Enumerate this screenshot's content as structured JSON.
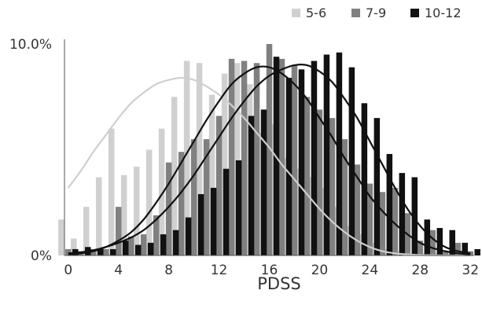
{
  "chart_data": {
    "type": "bar",
    "xlabel": "PDSS",
    "ylabel": "",
    "xlim": [
      -0.3,
      32.3
    ],
    "ylim": [
      0,
      10
    ],
    "xticks": [
      0,
      4,
      8,
      12,
      16,
      20,
      24,
      28,
      32
    ],
    "xtick_labels": [
      "0",
      "4",
      "8",
      "12",
      "16",
      "20",
      "24",
      "28",
      "32"
    ],
    "yticks": [
      0,
      10
    ],
    "ytick_labels": [
      "0%",
      "10.0%"
    ],
    "grid": false,
    "legend_position": "top-right",
    "x": [
      0,
      1,
      2,
      3,
      4,
      5,
      6,
      7,
      8,
      9,
      10,
      11,
      12,
      13,
      14,
      15,
      16,
      17,
      18,
      19,
      20,
      21,
      22,
      23,
      24,
      25,
      26,
      27,
      28,
      29,
      30,
      31,
      32
    ],
    "series": [
      {
        "name": "5-6",
        "color": "#d0d0d0",
        "values": [
          1.7,
          0.8,
          2.3,
          3.7,
          6.0,
          3.8,
          4.2,
          5.0,
          6.0,
          7.5,
          9.2,
          9.1,
          7.6,
          8.6,
          9.1,
          8.1,
          5.8,
          6.2,
          4.6,
          4.1,
          3.7,
          3.2,
          2.3,
          1.4,
          1.0,
          0.6,
          0.3,
          0.2,
          0.1,
          0.1,
          0.1,
          0.1,
          0.1
        ],
        "fit": [
          3.2,
          4.0,
          4.9,
          5.7,
          6.5,
          7.2,
          7.7,
          8.1,
          8.3,
          8.4,
          8.3,
          8.0,
          7.6,
          7.1,
          6.5,
          5.8,
          5.1,
          4.3,
          3.6,
          2.9,
          2.2,
          1.6,
          1.1,
          0.7,
          0.4,
          0.2,
          0.1,
          0.05,
          0.02,
          0.01,
          0.0,
          0.0,
          0.0
        ]
      },
      {
        "name": "7-9",
        "color": "#808080",
        "values": [
          0.3,
          0.2,
          0.3,
          0.3,
          2.3,
          0.9,
          1.0,
          1.9,
          4.4,
          4.9,
          5.5,
          5.5,
          6.6,
          9.3,
          9.2,
          9.1,
          10.0,
          9.3,
          9.0,
          7.5,
          6.9,
          6.5,
          5.5,
          4.3,
          3.4,
          3.0,
          3.2,
          2.0,
          0.7,
          1.2,
          0.2,
          0.6,
          0.2
        ],
        "fit": [
          0.05,
          0.1,
          0.2,
          0.4,
          0.7,
          1.1,
          1.7,
          2.5,
          3.4,
          4.4,
          5.4,
          6.4,
          7.3,
          8.1,
          8.6,
          8.9,
          8.9,
          8.6,
          8.1,
          7.4,
          6.5,
          5.6,
          4.6,
          3.7,
          2.8,
          2.1,
          1.5,
          1.0,
          0.6,
          0.35,
          0.2,
          0.1,
          0.05
        ]
      },
      {
        "name": "10-12",
        "color": "#111111",
        "values": [
          0.3,
          0.4,
          0.3,
          0.3,
          0.7,
          0.5,
          0.6,
          1.0,
          1.2,
          1.8,
          2.9,
          3.2,
          4.1,
          4.5,
          6.6,
          6.9,
          9.4,
          8.4,
          8.8,
          9.2,
          9.5,
          9.6,
          8.9,
          7.2,
          6.5,
          4.8,
          3.9,
          3.7,
          1.7,
          1.3,
          1.2,
          0.6,
          0.3
        ],
        "fit": [
          0.1,
          0.15,
          0.25,
          0.4,
          0.6,
          0.85,
          1.2,
          1.7,
          2.3,
          3.0,
          3.8,
          4.7,
          5.6,
          6.5,
          7.3,
          8.0,
          8.5,
          8.8,
          9.0,
          9.0,
          8.7,
          8.2,
          7.4,
          6.5,
          5.4,
          4.3,
          3.2,
          2.2,
          1.4,
          0.8,
          0.4,
          0.2,
          0.1
        ]
      }
    ]
  }
}
